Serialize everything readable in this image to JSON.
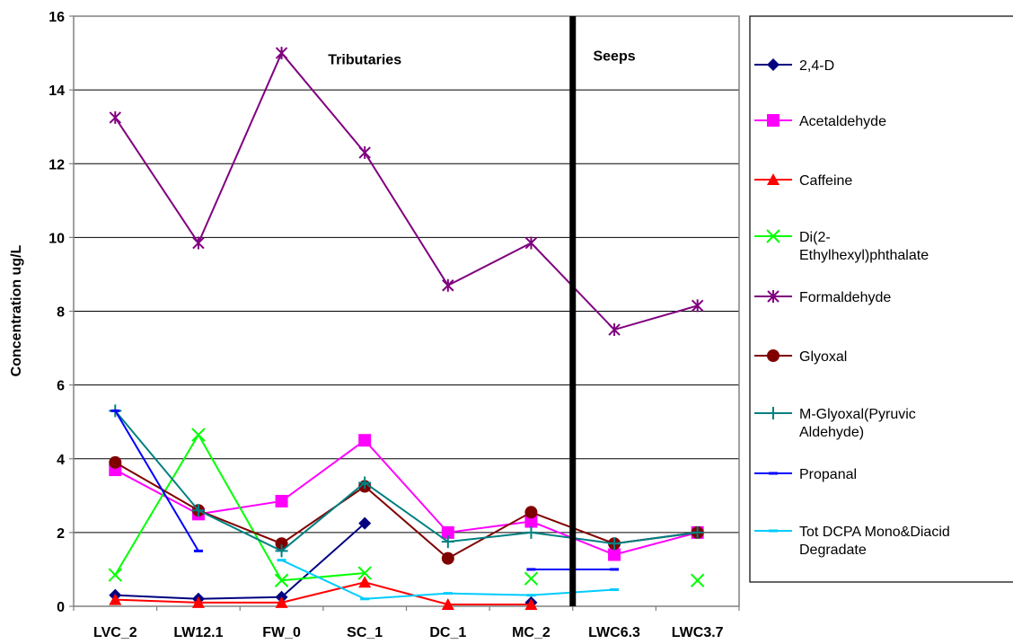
{
  "chart_data": {
    "type": "line",
    "title": "",
    "xlabel": "",
    "ylabel": "Concentration ug/L",
    "ylim": [
      0,
      16
    ],
    "yticks": [
      0,
      2,
      4,
      6,
      8,
      10,
      12,
      14,
      16
    ],
    "categories": [
      "LVC_2",
      "LW12.1",
      "FW_0",
      "SC_1",
      "DC_1",
      "MC_2",
      "LWC6.3",
      "LWC3.7"
    ],
    "grid": "horizontal",
    "legend_position": "right",
    "divider_after_category": "MC_2",
    "annotations": [
      {
        "text": "Tributaries",
        "x_category": "SC_1",
        "y": 14.7
      },
      {
        "text": "Seeps",
        "x_category": "LWC6.3",
        "y": 14.8
      }
    ],
    "series": [
      {
        "name": "2,4-D",
        "color": "#000080",
        "marker": "diamond",
        "values": [
          0.3,
          0.2,
          0.25,
          2.25,
          null,
          0.1,
          null,
          null
        ]
      },
      {
        "name": "Acetaldehyde",
        "color": "#FF00FF",
        "marker": "square",
        "values": [
          3.7,
          2.5,
          2.85,
          4.5,
          2.0,
          2.3,
          1.4,
          2.0
        ]
      },
      {
        "name": "Caffeine",
        "color": "#FF0000",
        "marker": "triangle",
        "values": [
          0.18,
          0.1,
          0.1,
          0.65,
          0.05,
          0.05,
          null,
          null
        ]
      },
      {
        "name": "Di(2-Ethylhexyl)phthalate",
        "legend_lines": [
          "Di(2-",
          "Ethylhexyl)phthalate"
        ],
        "color": "#00FF00",
        "marker": "x",
        "values": [
          0.85,
          4.65,
          0.7,
          0.9,
          null,
          0.75,
          null,
          0.7
        ]
      },
      {
        "name": "Formaldehyde",
        "color": "#800080",
        "marker": "star",
        "values": [
          13.25,
          9.85,
          15.0,
          12.3,
          8.7,
          9.85,
          7.5,
          8.15
        ]
      },
      {
        "name": "Glyoxal",
        "color": "#800000",
        "marker": "circle",
        "values": [
          3.9,
          2.6,
          1.7,
          3.25,
          1.3,
          2.55,
          1.7,
          2.0
        ]
      },
      {
        "name": "M-Glyoxal(Pyruvic Aldehyde)",
        "legend_lines": [
          "M-Glyoxal(Pyruvic",
          "Aldehyde)"
        ],
        "color": "#008080",
        "marker": "plus",
        "values": [
          5.3,
          2.6,
          1.5,
          3.35,
          1.75,
          2.0,
          1.7,
          2.0
        ]
      },
      {
        "name": "Propanal",
        "color": "#0000FF",
        "marker": "dash",
        "values": [
          5.3,
          1.5,
          null,
          null,
          null,
          1.0,
          1.0,
          null
        ]
      },
      {
        "name": "Tot DCPA Mono&Diacid Degradate",
        "legend_lines": [
          "Tot DCPA Mono&Diacid",
          "Degradate"
        ],
        "color": "#00CCFF",
        "marker": "dash",
        "values": [
          null,
          null,
          1.25,
          0.2,
          0.35,
          0.3,
          0.45,
          null
        ]
      }
    ]
  }
}
